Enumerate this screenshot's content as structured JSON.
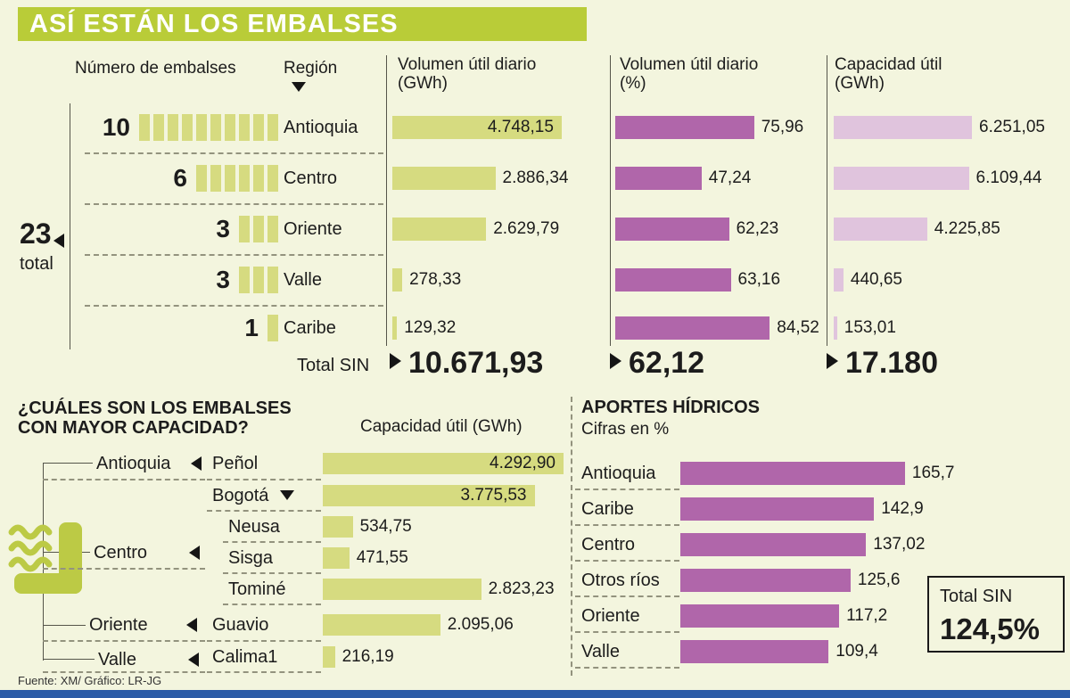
{
  "title": "ASÍ ESTÁN LOS EMBALSES",
  "colors": {
    "header_green": "#b9cc38",
    "bar_green": "#d6db80",
    "bar_purple": "#b066aa",
    "bar_light_purple": "#e0c4dd",
    "background": "#f3f5de",
    "footer_blue": "#2b5ba7"
  },
  "top_table": {
    "col_count": "Número de embalses",
    "col_region": "Región",
    "col_vol_gwh": "Volumen útil diario (GWh)",
    "col_vol_pct": "Volumen útil diario (%)",
    "col_cap": "Capacidad útil (GWh)",
    "rows": [
      {
        "count": "10",
        "region": "Antioquia",
        "vol_gwh": "4.748,15",
        "vol_pct": "75,96",
        "cap": "6.251,05"
      },
      {
        "count": "6",
        "region": "Centro",
        "vol_gwh": "2.886,34",
        "vol_pct": "47,24",
        "cap": "6.109,44"
      },
      {
        "count": "3",
        "region": "Oriente",
        "vol_gwh": "2.629,79",
        "vol_pct": "62,23",
        "cap": "4.225,85"
      },
      {
        "count": "3",
        "region": "Valle",
        "vol_gwh": "278,33",
        "vol_pct": "63,16",
        "cap": "440,65"
      },
      {
        "count": "1",
        "region": "Caribe",
        "vol_gwh": "129,32",
        "vol_pct": "84,52",
        "cap": "153,01"
      }
    ],
    "total_count": "23",
    "total_count_label": "total",
    "total_sin_label": "Total SIN",
    "total_vol_gwh": "10.671,93",
    "total_vol_pct": "62,12",
    "total_cap": "17.180"
  },
  "capacity": {
    "title_line1": "¿CUÁLES SON LOS EMBALSES",
    "title_line2": "CON MAYOR CAPACIDAD?",
    "axis_label": "Capacidad útil (GWh)",
    "regions": [
      "Antioquia",
      "Centro",
      "Oriente",
      "Valle"
    ],
    "rows": [
      {
        "name": "Peñol",
        "value": "4.292,90"
      },
      {
        "name": "Bogotá",
        "value": "3.775,53"
      },
      {
        "name": "Neusa",
        "value": "534,75"
      },
      {
        "name": "Sisga",
        "value": "471,55"
      },
      {
        "name": "Tominé",
        "value": "2.823,23"
      },
      {
        "name": "Guavio",
        "value": "2.095,06"
      },
      {
        "name": "Calima1",
        "value": "216,19"
      }
    ]
  },
  "aportes": {
    "title": "APORTES HÍDRICOS",
    "subtitle": "Cifras en %",
    "rows": [
      {
        "label": "Antioquia",
        "value": "165,7"
      },
      {
        "label": "Caribe",
        "value": "142,9"
      },
      {
        "label": "Centro",
        "value": "137,02"
      },
      {
        "label": "Otros ríos",
        "value": "125,6"
      },
      {
        "label": "Oriente",
        "value": "117,2"
      },
      {
        "label": "Valle",
        "value": "109,4"
      }
    ],
    "total_label": "Total SIN",
    "total_value": "124,5%"
  },
  "footer": {
    "source": "Fuente:  XM/ Gráfico: LR-JG"
  },
  "chart_data": [
    {
      "type": "table",
      "title": "ASÍ ESTÁN LOS EMBALSES",
      "categories": [
        "Antioquia",
        "Centro",
        "Oriente",
        "Valle",
        "Caribe"
      ],
      "series": [
        {
          "name": "Número de embalses",
          "values": [
            10,
            6,
            3,
            3,
            1
          ],
          "total": 23
        },
        {
          "name": "Volumen útil diario (GWh)",
          "values": [
            4748.15,
            2886.34,
            2629.79,
            278.33,
            129.32
          ],
          "total": 10671.93
        },
        {
          "name": "Volumen útil diario (%)",
          "values": [
            75.96,
            47.24,
            62.23,
            63.16,
            84.52
          ],
          "total": 62.12
        },
        {
          "name": "Capacidad útil (GWh)",
          "values": [
            6251.05,
            6109.44,
            4225.85,
            440.65,
            153.01
          ],
          "total": 17180
        }
      ],
      "total_label": "Total SIN"
    },
    {
      "type": "bar",
      "orientation": "horizontal",
      "title": "¿Cuáles son los embalses con mayor capacidad?",
      "xlabel": "Capacidad útil (GWh)",
      "categories": [
        "Peñol",
        "Bogotá",
        "Neusa",
        "Sisga",
        "Tominé",
        "Guavio",
        "Calima1"
      ],
      "values": [
        4292.9,
        3775.53,
        534.75,
        471.55,
        2823.23,
        2095.06,
        216.19
      ],
      "region_of": [
        "Antioquia",
        "Centro",
        "Centro",
        "Centro",
        "Centro",
        "Oriente",
        "Valle"
      ]
    },
    {
      "type": "bar",
      "orientation": "horizontal",
      "title": "Aportes hídricos",
      "subtitle": "Cifras en %",
      "categories": [
        "Antioquia",
        "Caribe",
        "Centro",
        "Otros ríos",
        "Oriente",
        "Valle"
      ],
      "values": [
        165.7,
        142.9,
        137.02,
        125.6,
        117.2,
        109.4
      ],
      "total": {
        "label": "Total SIN",
        "value": 124.5
      }
    }
  ]
}
